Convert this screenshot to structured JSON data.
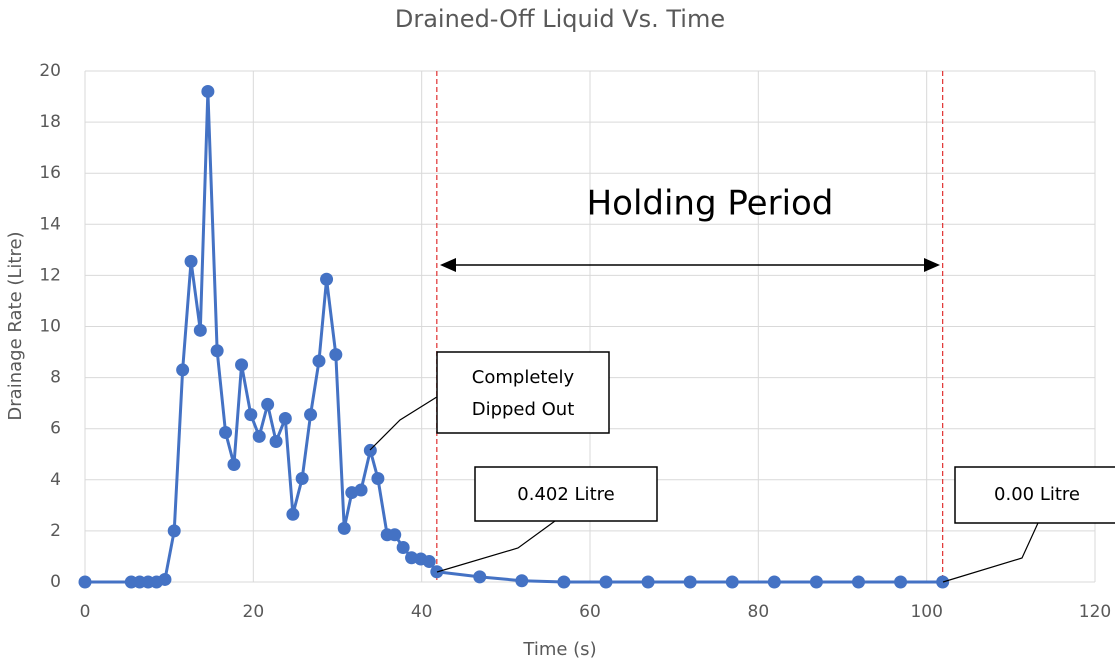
{
  "chart_data": {
    "type": "line",
    "title": "Drained-Off Liquid Vs. Time",
    "x_label": "Time (s)",
    "y_label": "Drainage Rate (Litre)",
    "xlim": [
      0,
      120
    ],
    "xticks": [
      0,
      20,
      40,
      60,
      80,
      100,
      120
    ],
    "ylim": [
      0,
      20
    ],
    "yticks": [
      0,
      2,
      4,
      6,
      8,
      10,
      12,
      14,
      16,
      18,
      20
    ],
    "grid": true,
    "series": [
      {
        "name": "Drainage Rate",
        "color": "#4472c4",
        "x": [
          0,
          5.5,
          6.5,
          7.5,
          8.5,
          9.5,
          10.6,
          11.6,
          12.6,
          13.7,
          14.6,
          15.7,
          16.7,
          17.7,
          18.6,
          19.7,
          20.7,
          21.7,
          22.7,
          23.8,
          24.7,
          25.8,
          26.8,
          27.8,
          28.7,
          29.8,
          30.8,
          31.7,
          32.8,
          33.9,
          34.8,
          35.9,
          36.8,
          37.8,
          38.8,
          39.9,
          40.9,
          41.8,
          46.9,
          51.9,
          56.9,
          61.9,
          66.9,
          71.9,
          76.9,
          81.9,
          86.9,
          91.9,
          96.9,
          101.9
        ],
        "values": [
          0,
          0,
          0,
          0,
          0,
          0.1,
          2.0,
          8.3,
          12.55,
          9.85,
          19.2,
          9.05,
          5.85,
          4.6,
          8.5,
          6.55,
          5.7,
          6.95,
          5.5,
          6.4,
          2.65,
          4.05,
          6.55,
          8.65,
          11.85,
          8.9,
          2.1,
          3.5,
          3.6,
          5.15,
          4.05,
          1.85,
          1.85,
          1.35,
          0.95,
          0.9,
          0.8,
          0.402,
          0.2,
          0.05,
          0,
          0,
          0,
          0,
          0,
          0,
          0,
          0,
          0,
          0
        ]
      }
    ],
    "reference_lines_x": [
      41.8,
      101.9
    ],
    "annotations": {
      "holding_period": "Holding Period",
      "dipped_out": [
        "Completely",
        "Dipped Out"
      ],
      "start_value": "0.402 Litre",
      "end_value": "0.00 Litre"
    }
  }
}
